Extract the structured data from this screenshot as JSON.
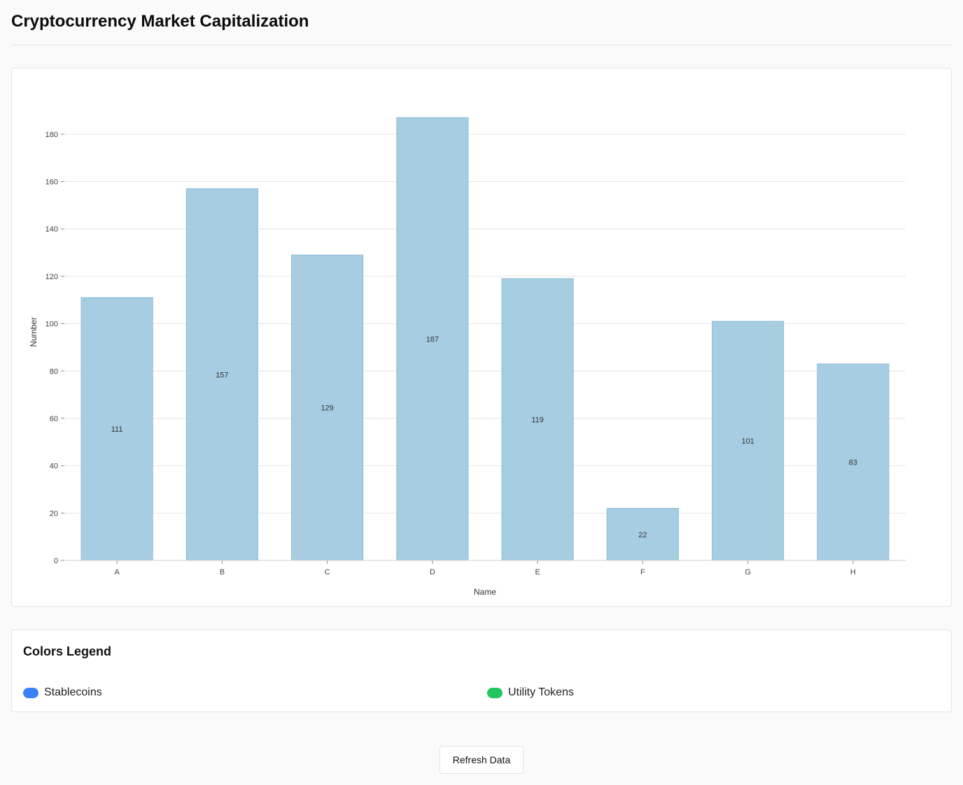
{
  "header": {
    "title": "Cryptocurrency Market Capitalization"
  },
  "chart_data": {
    "type": "bar",
    "categories": [
      "A",
      "B",
      "C",
      "D",
      "E",
      "F",
      "G",
      "H"
    ],
    "values": [
      111,
      157,
      129,
      187,
      119,
      22,
      101,
      83
    ],
    "title": "",
    "xlabel": "Name",
    "ylabel": "Number",
    "ylim": [
      0,
      190
    ],
    "yticks": [
      0,
      20,
      40,
      60,
      80,
      100,
      120,
      140,
      160,
      180
    ],
    "grid": true,
    "bar_color": "#a6cde2",
    "bar_stroke": "#8fbcd6",
    "data_labels": true
  },
  "legend": {
    "title": "Colors Legend",
    "items": [
      {
        "label": "Stablecoins",
        "color": "#3b82f6"
      },
      {
        "label": "Utility Tokens",
        "color": "#22c55e"
      }
    ]
  },
  "actions": {
    "refresh_label": "Refresh Data"
  }
}
